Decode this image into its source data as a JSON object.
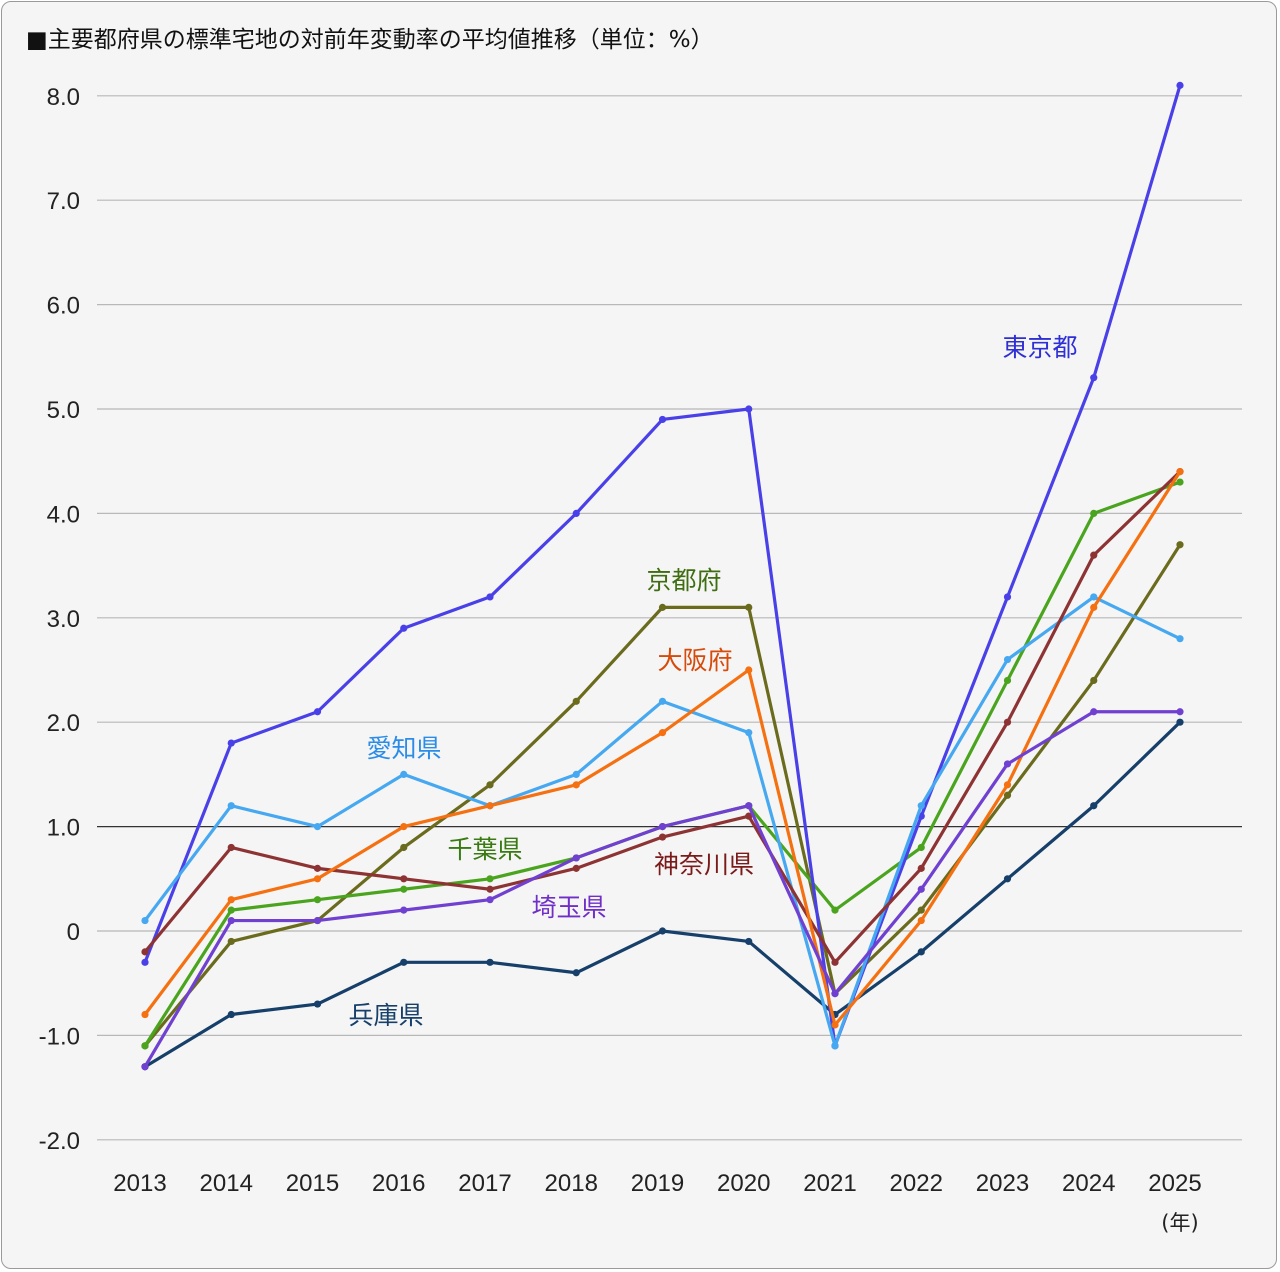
{
  "title": "■主要都府県の標準宅地の対前年変動率の平均値推移（単位：%）",
  "x_unit": "(年)",
  "chart_data": {
    "type": "line",
    "title": "■主要都府県の標準宅地の対前年変動率の平均値推移（単位：%）",
    "xlabel": "(年)",
    "ylabel": "",
    "ylim": [
      -2.0,
      8.0
    ],
    "yticks": [
      "8.0",
      "7.0",
      "6.0",
      "5.0",
      "4.0",
      "3.0",
      "2.0",
      "1.0",
      "0",
      "-1.0",
      "-2.0"
    ],
    "ytick_values": [
      8,
      7,
      6,
      5,
      4,
      3,
      2,
      1,
      0,
      -1,
      -2
    ],
    "reference_line": 1.0,
    "grid": true,
    "categories": [
      "2013",
      "2014",
      "2015",
      "2016",
      "2017",
      "2018",
      "2019",
      "2020",
      "2021",
      "2022",
      "2023",
      "2024",
      "2025"
    ],
    "series": [
      {
        "name": "東京都",
        "color": "#4a40e8",
        "label_color": "#2f2fd6",
        "values": [
          -0.3,
          1.8,
          2.1,
          2.9,
          3.2,
          4.0,
          4.9,
          5.0,
          -1.1,
          1.1,
          3.2,
          5.3,
          8.1
        ]
      },
      {
        "name": "京都府",
        "color": "#6b6b1e",
        "label_color": "#3f6e12",
        "values": [
          -1.1,
          -0.1,
          0.1,
          0.8,
          1.4,
          2.2,
          3.1,
          3.1,
          -0.6,
          0.2,
          1.3,
          2.4,
          3.7
        ]
      },
      {
        "name": "大阪府",
        "color": "#f57010",
        "label_color": "#d64a0a",
        "values": [
          -0.8,
          0.3,
          0.5,
          1.0,
          1.2,
          1.4,
          1.9,
          2.5,
          -0.9,
          0.1,
          1.4,
          3.1,
          4.4
        ]
      },
      {
        "name": "愛知県",
        "color": "#46a8f0",
        "label_color": "#2c8de8",
        "values": [
          0.1,
          1.2,
          1.0,
          1.5,
          1.2,
          1.5,
          2.2,
          1.9,
          -1.1,
          1.2,
          2.6,
          3.2,
          2.8
        ]
      },
      {
        "name": "千葉県",
        "color": "#4aa41e",
        "label_color": "#3a7a12",
        "values": [
          -1.1,
          0.2,
          0.3,
          0.4,
          0.5,
          0.7,
          1.0,
          1.2,
          0.2,
          0.8,
          2.4,
          4.0,
          4.3
        ]
      },
      {
        "name": "神奈川県",
        "color": "#8e3333",
        "label_color": "#7a1a1a",
        "values": [
          -0.2,
          0.8,
          0.6,
          0.5,
          0.4,
          0.6,
          0.9,
          1.1,
          -0.3,
          0.6,
          2.0,
          3.6,
          4.4
        ]
      },
      {
        "name": "埼玉県",
        "color": "#7040d0",
        "label_color": "#7030c8",
        "values": [
          -1.3,
          0.1,
          0.1,
          0.2,
          0.3,
          0.7,
          1.0,
          1.2,
          -0.6,
          0.4,
          1.6,
          2.1,
          2.1
        ]
      },
      {
        "name": "兵庫県",
        "color": "#163f6a",
        "label_color": "#163f6a",
        "values": [
          -1.3,
          -0.8,
          -0.7,
          -0.3,
          -0.3,
          -0.4,
          0.0,
          -0.1,
          -0.8,
          -0.2,
          0.5,
          1.2,
          2.0
        ]
      }
    ],
    "legend": "inline labels next to lines"
  }
}
